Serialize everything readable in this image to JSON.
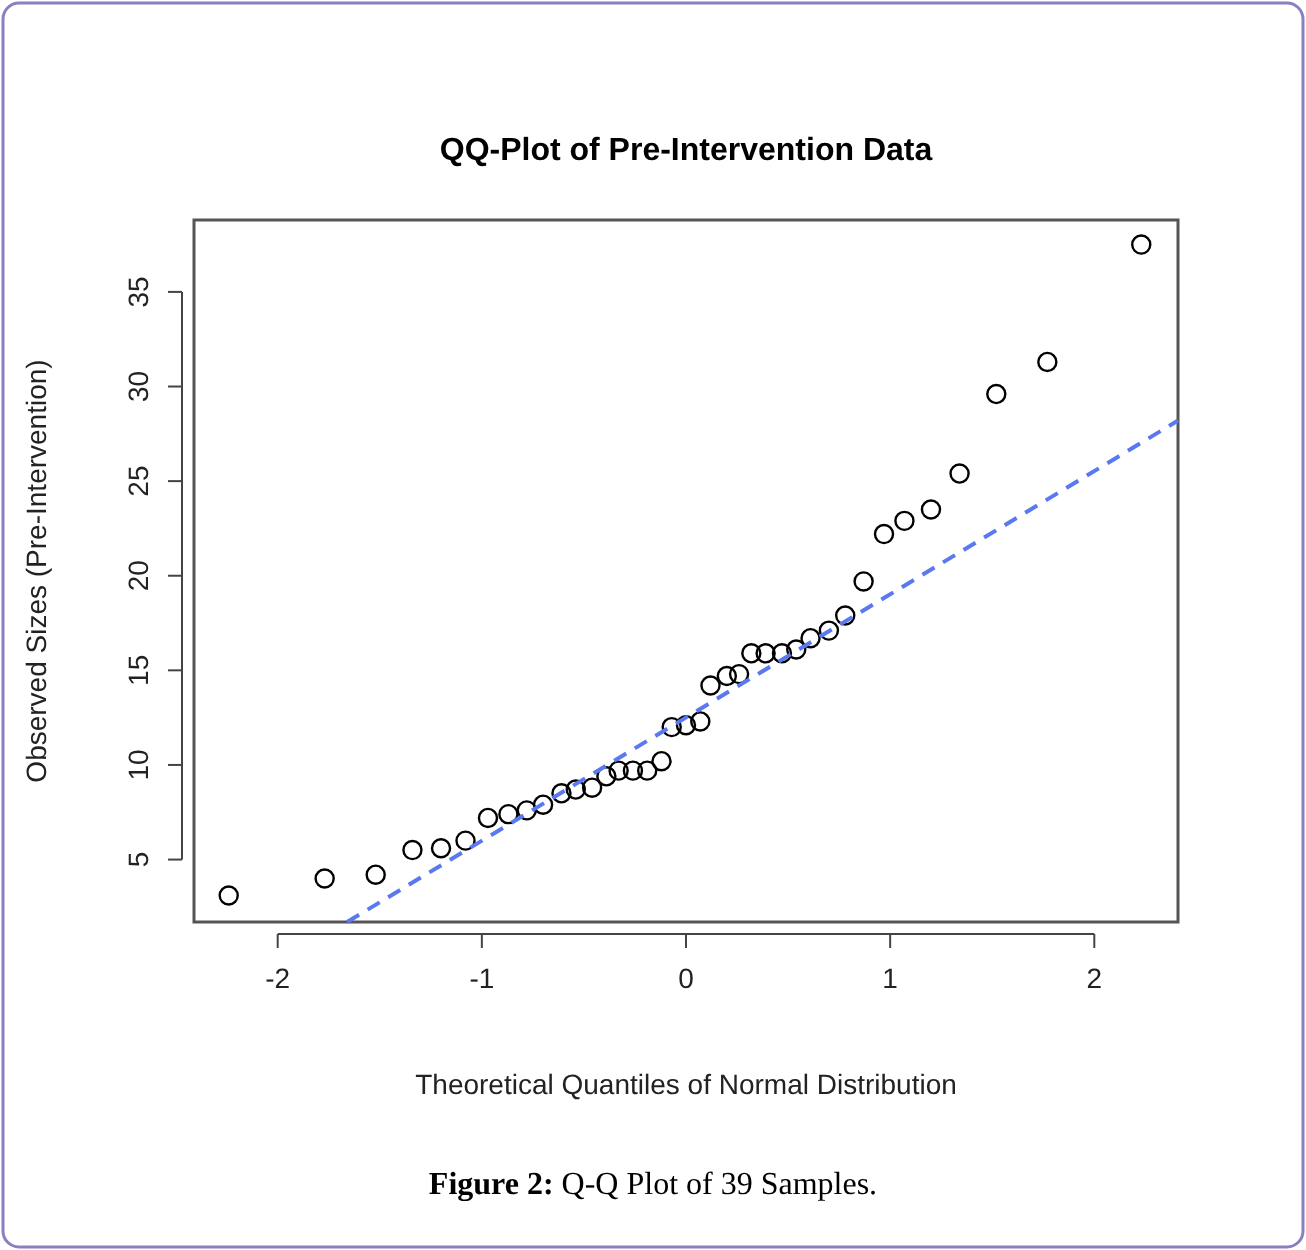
{
  "chart_data": {
    "type": "scatter",
    "title": "QQ-Plot of Pre-Intervention Data",
    "xlabel": "Theoretical Quantiles of Normal Distribution",
    "ylabel": "Observed Sizes (Pre-Intervention)",
    "annotations": [
      "Figure 2: Q-Q Plot of 39 Samples."
    ],
    "xlim": [
      -2.41,
      2.41
    ],
    "ylim": [
      1.7,
      38.8
    ],
    "xticks": [
      -2,
      -1,
      0,
      1,
      2
    ],
    "yticks": [
      5,
      10,
      15,
      20,
      25,
      30,
      35
    ],
    "grid": false,
    "series": [
      {
        "color": "#000000",
        "marker": "circle",
        "x": [
          -2.24,
          -1.77,
          -1.52,
          -1.34,
          -1.2,
          -1.08,
          -0.97,
          -0.87,
          -0.78,
          -0.7,
          -0.61,
          -0.54,
          -0.46,
          -0.39,
          -0.33,
          -0.26,
          -0.19,
          -0.12,
          -0.07,
          0,
          0.07,
          0.12,
          0.2,
          0.26,
          0.32,
          0.39,
          0.47,
          0.54,
          0.61,
          0.7,
          0.78,
          0.87,
          0.97,
          1.07,
          1.2,
          1.34,
          1.52,
          1.77,
          2.23
        ],
        "values": [
          3.1,
          4.0,
          4.2,
          5.5,
          5.6,
          6.0,
          7.2,
          7.4,
          7.6,
          7.9,
          8.5,
          8.7,
          8.8,
          9.4,
          9.7,
          9.7,
          9.7,
          10.2,
          12.0,
          12.1,
          12.3,
          14.2,
          14.7,
          14.8,
          15.9,
          15.9,
          15.9,
          16.1,
          16.7,
          17.1,
          17.9,
          19.7,
          22.2,
          22.9,
          23.5,
          25.4,
          29.6,
          31.3,
          37.5
        ]
      },
      {
        "type": "line",
        "color": "#5a78f0",
        "line_style": "dashed",
        "x": [
          -1.66,
          2.41
        ],
        "values": [
          1.7,
          28.2
        ]
      }
    ]
  }
}
